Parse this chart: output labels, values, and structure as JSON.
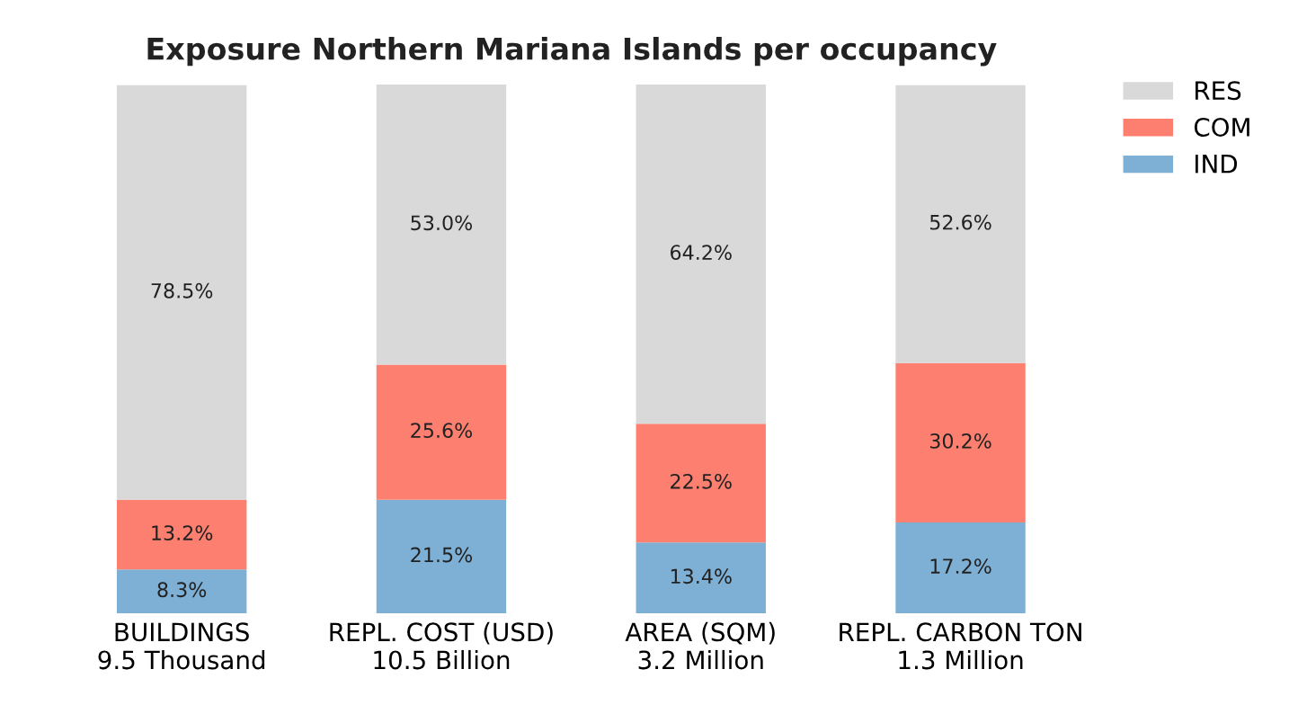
{
  "chart_data": {
    "type": "bar",
    "title": "Exposure Northern Mariana Islands per occupancy",
    "stacked": true,
    "categories": [
      "BUILDINGS\n9.5 Thousand",
      "REPL. COST (USD)\n10.5 Billion",
      "AREA (SQM)\n3.2 Million",
      "REPL. CARBON TON\n1.3 Million"
    ],
    "series": [
      {
        "name": "IND",
        "color": "#7eb0d5",
        "values": [
          8.3,
          21.5,
          13.4,
          17.2
        ],
        "value_labels": [
          "8.3%",
          "21.5%",
          "13.4%",
          "17.2%"
        ]
      },
      {
        "name": "COM",
        "color": "#fd7f6f",
        "values": [
          13.2,
          25.6,
          22.5,
          30.2
        ],
        "value_labels": [
          "13.2%",
          "25.6%",
          "22.5%",
          "30.2%"
        ]
      },
      {
        "name": "RES",
        "color": "#d9d9d9",
        "values": [
          78.5,
          53.0,
          64.2,
          52.6
        ],
        "value_labels": [
          "78.5%",
          "53.0%",
          "64.2%",
          "52.6%"
        ]
      }
    ],
    "legend": "top right",
    "grid": false,
    "tick_labels": "x"
  }
}
